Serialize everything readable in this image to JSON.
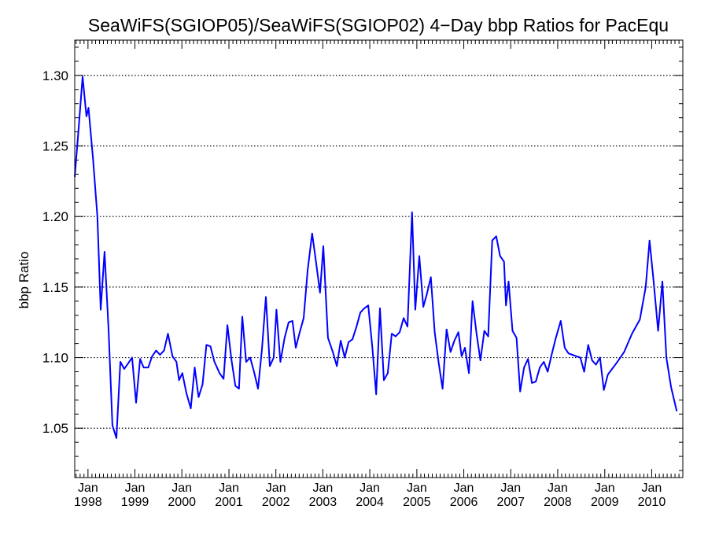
{
  "chart_data": {
    "type": "line",
    "title": "SeaWiFS(SGIOP05)/SeaWiFS(SGIOP02) 4−Day bbp Ratios for PacEqu",
    "ylabel": "bbp Ratio",
    "xlabel": "",
    "ylim": [
      1.015,
      1.325
    ],
    "xlim": [
      "1997-09-20",
      "2010-08-31"
    ],
    "grid": "horizontal dotted",
    "y_ticks": [
      "1.05",
      "1.10",
      "1.15",
      "1.20",
      "1.25",
      "1.30"
    ],
    "x_ticks": [
      {
        "date": "1998-01-01",
        "month": "Jan",
        "year": "1998"
      },
      {
        "date": "1999-01-01",
        "month": "Jan",
        "year": "1999"
      },
      {
        "date": "2000-01-01",
        "month": "Jan",
        "year": "2000"
      },
      {
        "date": "2001-01-01",
        "month": "Jan",
        "year": "2001"
      },
      {
        "date": "2002-01-01",
        "month": "Jan",
        "year": "2002"
      },
      {
        "date": "2003-01-01",
        "month": "Jan",
        "year": "2003"
      },
      {
        "date": "2004-01-01",
        "month": "Jan",
        "year": "2004"
      },
      {
        "date": "2005-01-01",
        "month": "Jan",
        "year": "2005"
      },
      {
        "date": "2006-01-01",
        "month": "Jan",
        "year": "2006"
      },
      {
        "date": "2007-01-01",
        "month": "Jan",
        "year": "2007"
      },
      {
        "date": "2008-01-01",
        "month": "Jan",
        "year": "2008"
      },
      {
        "date": "2009-01-01",
        "month": "Jan",
        "year": "2009"
      },
      {
        "date": "2010-01-01",
        "month": "Jan",
        "year": "2010"
      }
    ],
    "series": [
      {
        "color": "#0000ff",
        "points": [
          [
            "1997-09-20",
            1.228
          ],
          [
            "1997-10-20",
            1.262
          ],
          [
            "1997-11-20",
            1.299
          ],
          [
            "1997-12-20",
            1.271
          ],
          [
            "1998-01-05",
            1.277
          ],
          [
            "1998-02-10",
            1.24
          ],
          [
            "1998-03-15",
            1.2
          ],
          [
            "1998-04-10",
            1.134
          ],
          [
            "1998-05-10",
            1.175
          ],
          [
            "1998-06-10",
            1.12
          ],
          [
            "1998-07-10",
            1.052
          ],
          [
            "1998-08-10",
            1.043
          ],
          [
            "1998-09-10",
            1.097
          ],
          [
            "1998-10-10",
            1.092
          ],
          [
            "1998-11-10",
            1.096
          ],
          [
            "1998-12-10",
            1.1
          ],
          [
            "1999-01-10",
            1.068
          ],
          [
            "1999-02-10",
            1.099
          ],
          [
            "1999-03-10",
            1.093
          ],
          [
            "1999-04-15",
            1.093
          ],
          [
            "1999-05-15",
            1.101
          ],
          [
            "1999-06-15",
            1.105
          ],
          [
            "1999-07-15",
            1.102
          ],
          [
            "1999-08-15",
            1.105
          ],
          [
            "1999-09-15",
            1.117
          ],
          [
            "1999-10-20",
            1.101
          ],
          [
            "1999-11-20",
            1.097
          ],
          [
            "1999-12-10",
            1.084
          ],
          [
            "2000-01-05",
            1.089
          ],
          [
            "2000-02-05",
            1.075
          ],
          [
            "2000-03-10",
            1.064
          ],
          [
            "2000-04-10",
            1.093
          ],
          [
            "2000-05-10",
            1.072
          ],
          [
            "2000-06-10",
            1.081
          ],
          [
            "2000-07-10",
            1.109
          ],
          [
            "2000-08-10",
            1.108
          ],
          [
            "2000-09-10",
            1.097
          ],
          [
            "2000-10-20",
            1.089
          ],
          [
            "2000-11-20",
            1.085
          ],
          [
            "2000-12-20",
            1.123
          ],
          [
            "2001-01-20",
            1.099
          ],
          [
            "2001-02-20",
            1.08
          ],
          [
            "2001-03-20",
            1.078
          ],
          [
            "2001-04-15",
            1.129
          ],
          [
            "2001-05-15",
            1.097
          ],
          [
            "2001-06-15",
            1.1
          ],
          [
            "2001-07-15",
            1.09
          ],
          [
            "2001-08-15",
            1.078
          ],
          [
            "2001-09-15",
            1.106
          ],
          [
            "2001-10-15",
            1.143
          ],
          [
            "2001-11-15",
            1.094
          ],
          [
            "2001-12-15",
            1.1
          ],
          [
            "2002-01-05",
            1.134
          ],
          [
            "2002-02-05",
            1.097
          ],
          [
            "2002-03-10",
            1.114
          ],
          [
            "2002-04-10",
            1.125
          ],
          [
            "2002-05-10",
            1.126
          ],
          [
            "2002-06-05",
            1.107
          ],
          [
            "2002-07-05",
            1.118
          ],
          [
            "2002-08-05",
            1.128
          ],
          [
            "2002-09-05",
            1.162
          ],
          [
            "2002-10-10",
            1.188
          ],
          [
            "2002-11-10",
            1.167
          ],
          [
            "2002-12-10",
            1.146
          ],
          [
            "2003-01-05",
            1.179
          ],
          [
            "2003-02-10",
            1.114
          ],
          [
            "2003-03-20",
            1.104
          ],
          [
            "2003-04-20",
            1.094
          ],
          [
            "2003-05-20",
            1.112
          ],
          [
            "2003-06-20",
            1.1
          ],
          [
            "2003-07-20",
            1.111
          ],
          [
            "2003-08-20",
            1.113
          ],
          [
            "2003-09-20",
            1.122
          ],
          [
            "2003-10-20",
            1.132
          ],
          [
            "2003-11-20",
            1.135
          ],
          [
            "2003-12-20",
            1.137
          ],
          [
            "2004-01-20",
            1.108
          ],
          [
            "2004-02-20",
            1.074
          ],
          [
            "2004-03-20",
            1.135
          ],
          [
            "2004-04-20",
            1.084
          ],
          [
            "2004-05-20",
            1.089
          ],
          [
            "2004-06-20",
            1.117
          ],
          [
            "2004-07-20",
            1.115
          ],
          [
            "2004-08-20",
            1.118
          ],
          [
            "2004-09-20",
            1.128
          ],
          [
            "2004-10-20",
            1.122
          ],
          [
            "2004-11-25",
            1.203
          ],
          [
            "2004-12-20",
            1.134
          ],
          [
            "2005-01-20",
            1.172
          ],
          [
            "2005-02-20",
            1.136
          ],
          [
            "2005-03-20",
            1.145
          ],
          [
            "2005-04-20",
            1.157
          ],
          [
            "2005-05-20",
            1.118
          ],
          [
            "2005-06-20",
            1.096
          ],
          [
            "2005-07-20",
            1.078
          ],
          [
            "2005-08-20",
            1.12
          ],
          [
            "2005-09-20",
            1.104
          ],
          [
            "2005-10-20",
            1.112
          ],
          [
            "2005-11-20",
            1.118
          ],
          [
            "2005-12-15",
            1.101
          ],
          [
            "2006-01-10",
            1.107
          ],
          [
            "2006-02-10",
            1.089
          ],
          [
            "2006-03-10",
            1.14
          ],
          [
            "2006-04-10",
            1.117
          ],
          [
            "2006-05-10",
            1.098
          ],
          [
            "2006-06-10",
            1.119
          ],
          [
            "2006-07-10",
            1.115
          ],
          [
            "2006-08-10",
            1.183
          ],
          [
            "2006-09-10",
            1.186
          ],
          [
            "2006-10-10",
            1.172
          ],
          [
            "2006-11-10",
            1.168
          ],
          [
            "2006-11-25",
            1.137
          ],
          [
            "2006-12-15",
            1.154
          ],
          [
            "2007-01-15",
            1.119
          ],
          [
            "2007-02-15",
            1.114
          ],
          [
            "2007-03-15",
            1.076
          ],
          [
            "2007-04-15",
            1.093
          ],
          [
            "2007-05-15",
            1.099
          ],
          [
            "2007-06-15",
            1.082
          ],
          [
            "2007-07-15",
            1.083
          ],
          [
            "2007-08-15",
            1.093
          ],
          [
            "2007-09-15",
            1.097
          ],
          [
            "2007-10-15",
            1.09
          ],
          [
            "2007-11-15",
            1.102
          ],
          [
            "2007-12-15",
            1.113
          ],
          [
            "2008-01-25",
            1.126
          ],
          [
            "2008-02-25",
            1.107
          ],
          [
            "2008-03-25",
            1.103
          ],
          [
            "2008-04-25",
            1.102
          ],
          [
            "2008-05-25",
            1.101
          ],
          [
            "2008-06-25",
            1.1
          ],
          [
            "2008-07-25",
            1.09
          ],
          [
            "2008-08-25",
            1.109
          ],
          [
            "2008-09-25",
            1.098
          ],
          [
            "2008-10-25",
            1.095
          ],
          [
            "2008-11-25",
            1.1
          ],
          [
            "2008-12-25",
            1.077
          ],
          [
            "2009-01-25",
            1.088
          ],
          [
            "2009-04-01",
            1.096
          ],
          [
            "2009-06-01",
            1.104
          ],
          [
            "2009-08-01",
            1.117
          ],
          [
            "2009-10-01",
            1.127
          ],
          [
            "2009-11-15",
            1.15
          ],
          [
            "2009-12-15",
            1.183
          ],
          [
            "2010-01-15",
            1.155
          ],
          [
            "2010-02-20",
            1.119
          ],
          [
            "2010-03-25",
            1.154
          ],
          [
            "2010-04-25",
            1.1
          ],
          [
            "2010-06-01",
            1.079
          ],
          [
            "2010-07-15",
            1.062
          ]
        ]
      }
    ]
  }
}
